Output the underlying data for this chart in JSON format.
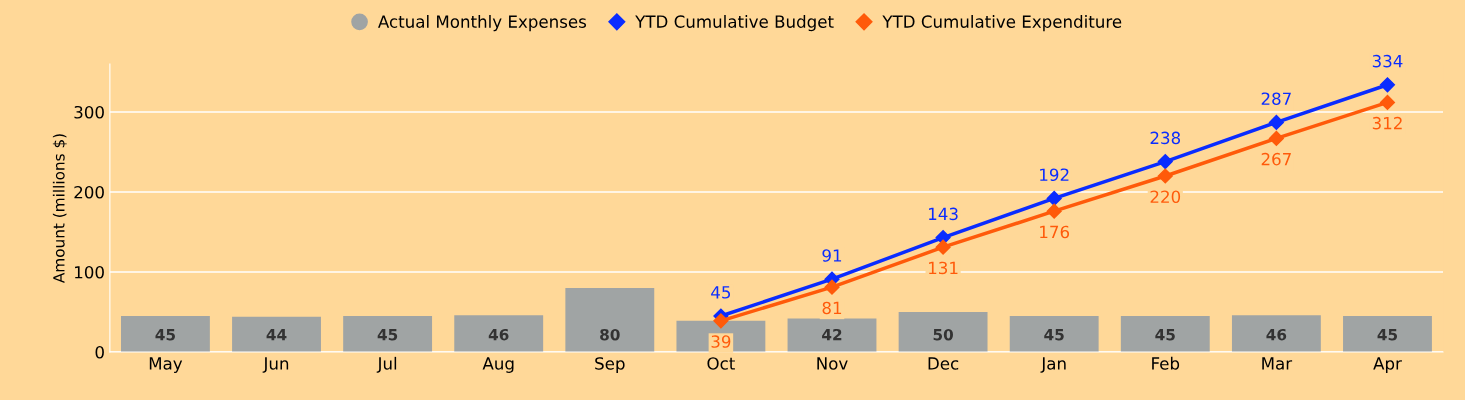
{
  "chart_data": {
    "type": "bar",
    "ylabel": "Amount (millions $)",
    "categories": [
      "May",
      "Jun",
      "Jul",
      "Aug",
      "Sep",
      "Oct",
      "Nov",
      "Dec",
      "Jan",
      "Feb",
      "Mar",
      "Apr"
    ],
    "series": [
      {
        "name": "Actual Monthly Expenses",
        "color": "#a0a4a4",
        "values": [
          45,
          44,
          45,
          46,
          80,
          39,
          42,
          50,
          45,
          45,
          46,
          45
        ],
        "value_labels": [
          "45",
          "44",
          "45",
          "46",
          "80",
          null,
          "42",
          "50",
          "45",
          "45",
          "46",
          "45"
        ]
      },
      {
        "name": "YTD Cumulative Budget",
        "type": "line",
        "color": "#0a2cff",
        "values": [
          null,
          null,
          null,
          null,
          null,
          45,
          91,
          143,
          192,
          238,
          287,
          334
        ],
        "value_labels": [
          null,
          null,
          null,
          null,
          null,
          "45",
          "91",
          "143",
          "192",
          "238",
          "287",
          "334"
        ]
      },
      {
        "name": "YTD Cumulative Expenditure",
        "type": "line",
        "color": "#ff5a0a",
        "values": [
          null,
          null,
          null,
          null,
          null,
          39,
          81,
          131,
          176,
          220,
          267,
          312
        ],
        "value_labels": [
          null,
          null,
          null,
          null,
          null,
          "39",
          "81",
          "131",
          "176",
          "220",
          "267",
          "312"
        ]
      }
    ],
    "ylim": [
      0,
      360
    ],
    "yticks": [
      0,
      100,
      200,
      300
    ],
    "grid": "y",
    "legend": "top",
    "marker": "diamond"
  }
}
